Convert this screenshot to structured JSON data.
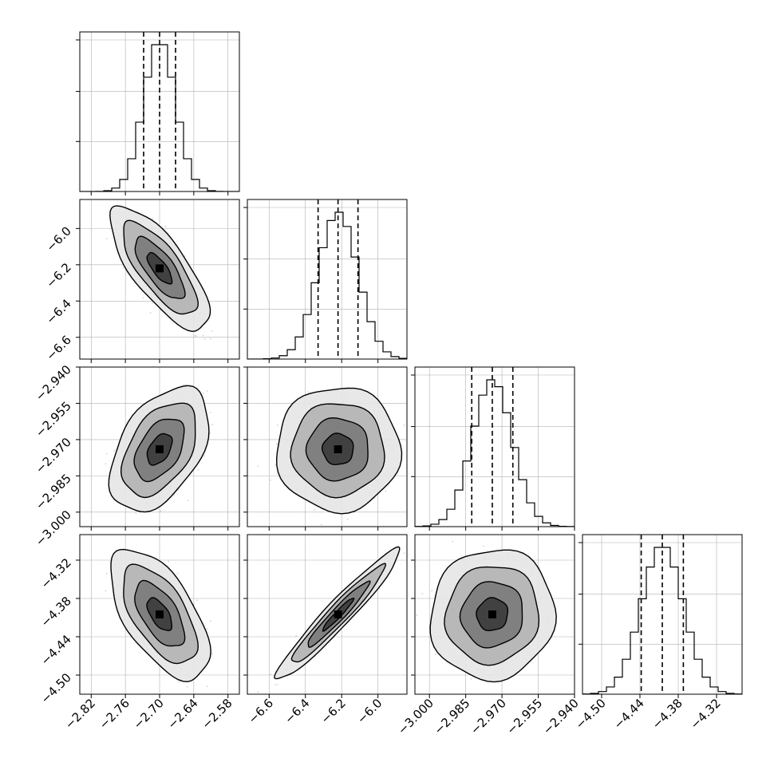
{
  "chart_data": {
    "type": "corner",
    "parameters": [
      {
        "id": "p0",
        "mean": -2.7,
        "std": 0.028,
        "quantiles": [
          -2.728,
          -2.7,
          -2.672
        ],
        "range": [
          -2.84,
          -2.56
        ],
        "ticks": [
          -2.82,
          -2.76,
          -2.7,
          -2.64,
          -2.58
        ],
        "tick_labels": [
          "−2.82",
          "−2.76",
          "−2.70",
          "−2.64",
          "−2.58"
        ]
      },
      {
        "id": "p1",
        "mean": -6.22,
        "std": 0.11,
        "quantiles": [
          -6.33,
          -6.22,
          -6.11
        ],
        "range": [
          -6.72,
          -5.84
        ],
        "ticks": [
          -6.6,
          -6.4,
          -6.2,
          -6.0
        ],
        "tick_labels": [
          "−6.6",
          "−6.4",
          "−6.2",
          "−6.0"
        ]
      },
      {
        "id": "p2",
        "mean": -2.974,
        "std": 0.0083,
        "quantiles": [
          -2.9825,
          -2.974,
          -2.9655
        ],
        "range": [
          -3.006,
          -2.94
        ],
        "ticks": [
          -3.0,
          -2.985,
          -2.97,
          -2.955,
          -2.94
        ],
        "tick_labels": [
          "−3.000",
          "−2.985",
          "−2.970",
          "−2.955",
          "−2.940"
        ]
      },
      {
        "id": "p3",
        "mean": -4.405,
        "std": 0.033,
        "quantiles": [
          -4.438,
          -4.405,
          -4.372
        ],
        "range": [
          -4.53,
          -4.28
        ],
        "ticks": [
          -4.5,
          -4.44,
          -4.38,
          -4.32
        ],
        "tick_labels": [
          "−4.50",
          "−4.44",
          "−4.38",
          "−4.32"
        ]
      }
    ],
    "correlations": {
      "0-1": -0.75,
      "0-2": 0.45,
      "0-3": -0.6,
      "1-2": 0.0,
      "1-3": 0.96,
      "2-3": 0.05
    },
    "contour_levels_sigma": [
      0.5,
      1.0,
      1.5,
      2.0
    ],
    "histogram_bins": 20,
    "grid": true,
    "colors": {
      "line": "#000000",
      "grid": "#b0b0b0",
      "points": "#000000",
      "background": "#ffffff"
    }
  }
}
